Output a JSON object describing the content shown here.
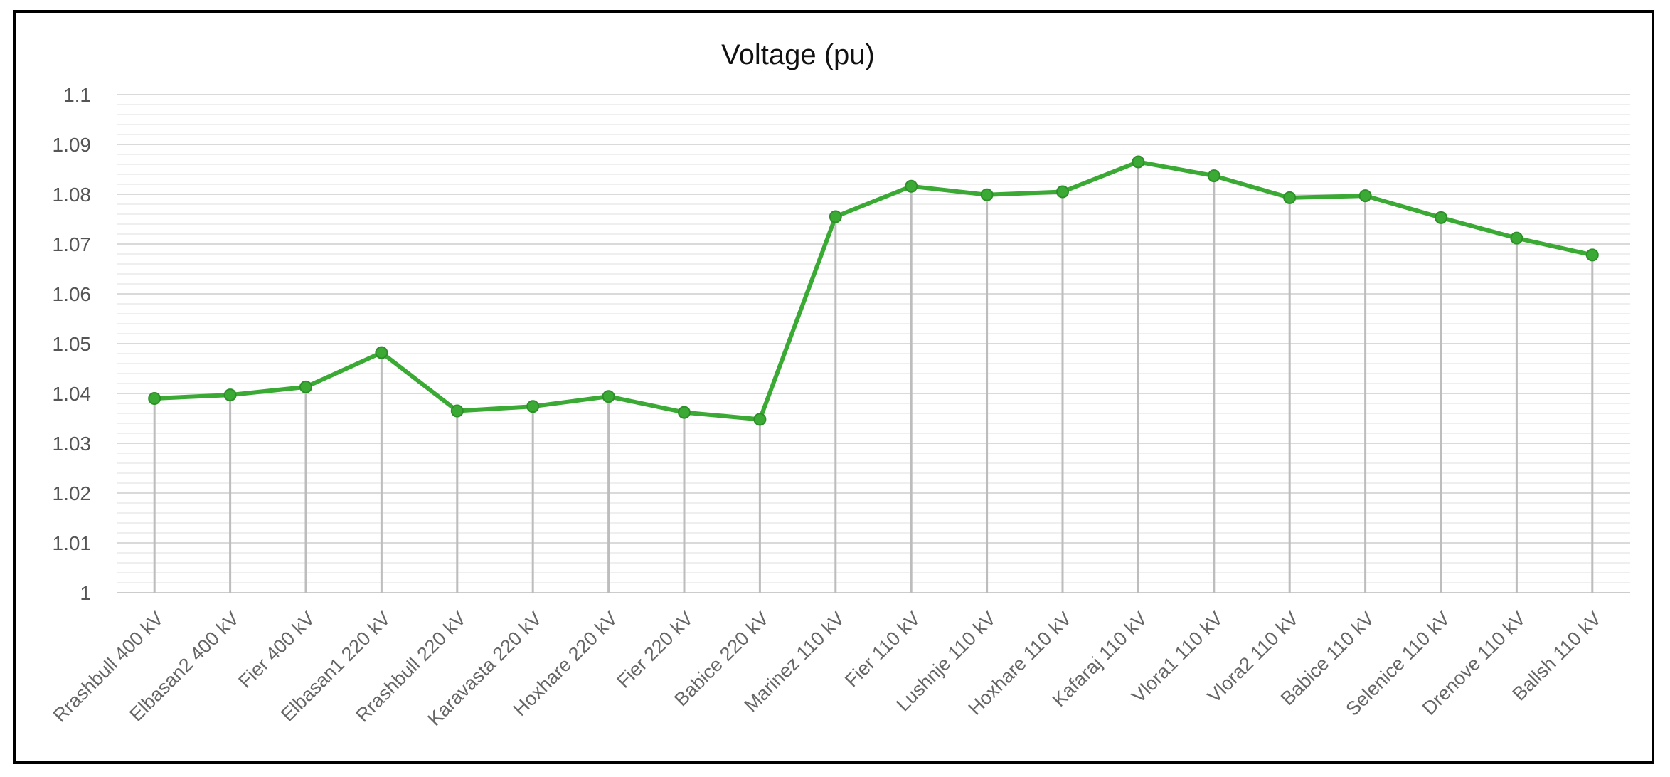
{
  "chart_data": {
    "type": "line",
    "title": "Voltage (pu)",
    "categories": [
      "Rrashbull 400 kV",
      "Elbasan2 400 kV",
      "Fier 400 kV",
      "Elbasan1 220 kV",
      "Rrashbull 220 kV",
      "Karavasta 220 kV",
      "Hoxhare 220 kV",
      "Fier 220 kV",
      "Babice 220 kV",
      "Marinez 110 kV",
      "Fier 110 kV",
      "Lushnje 110 kV",
      "Hoxhare 110 kV",
      "Kafaraj 110 kV",
      "Vlora1 110 kV",
      "Vlora2 110 kV",
      "Babice 110 kV",
      "Selenice 110 kV",
      "Drenove 110 kV",
      "Ballsh 110 kV"
    ],
    "series": [
      {
        "values": [
          1.039,
          1.0397,
          1.0413,
          1.0482,
          1.0365,
          1.0374,
          1.0394,
          1.0362,
          1.0348,
          1.0755,
          1.0816,
          1.0799,
          1.0805,
          1.0865,
          1.0837,
          1.0793,
          1.0797,
          1.0753,
          1.0712,
          1.0678
        ],
        "color": "#3aaa35"
      }
    ],
    "ylim": [
      1.0,
      1.1
    ],
    "yticks": [
      "1",
      "1.01",
      "1.02",
      "1.03",
      "1.04",
      "1.05",
      "1.06",
      "1.07",
      "1.08",
      "1.09",
      "1.1"
    ],
    "grid": true,
    "drop_lines": true,
    "legend": "none"
  }
}
